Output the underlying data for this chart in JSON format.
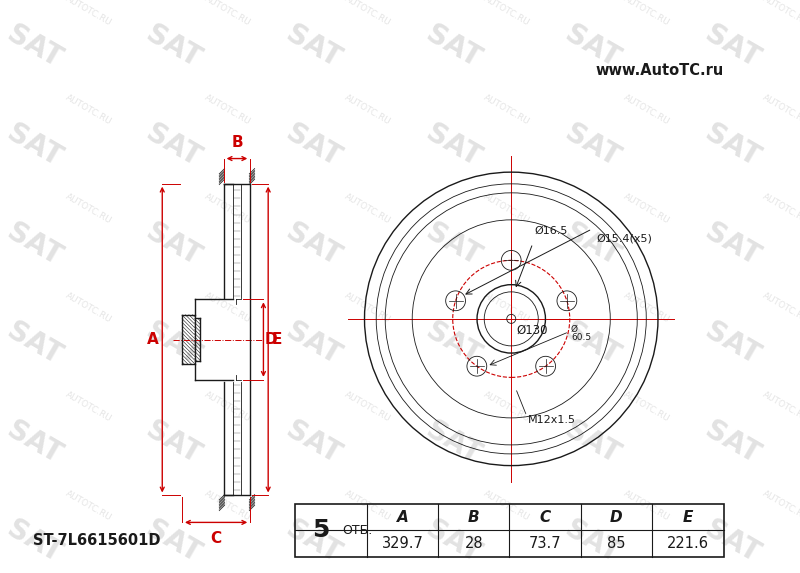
{
  "bg_color": "#ffffff",
  "line_color": "#1a1a1a",
  "red_color": "#cc0000",
  "title_text": "www.AutoTC.ru",
  "part_number": "ST-7L6615601D",
  "otv_text": "ОТБ.",
  "dim_A": "329.7",
  "dim_B": "28",
  "dim_C": "73.7",
  "dim_D": "85",
  "dim_E": "221.6",
  "label_d165": "Ø16.5",
  "label_d154": "Ø15.4(x5)",
  "label_d130": "Ø130",
  "label_d605": "Ø60.5",
  "label_m12": "M12x1.5",
  "wm_texts": [
    "SAT",
    "AUTOTC.RU"
  ]
}
